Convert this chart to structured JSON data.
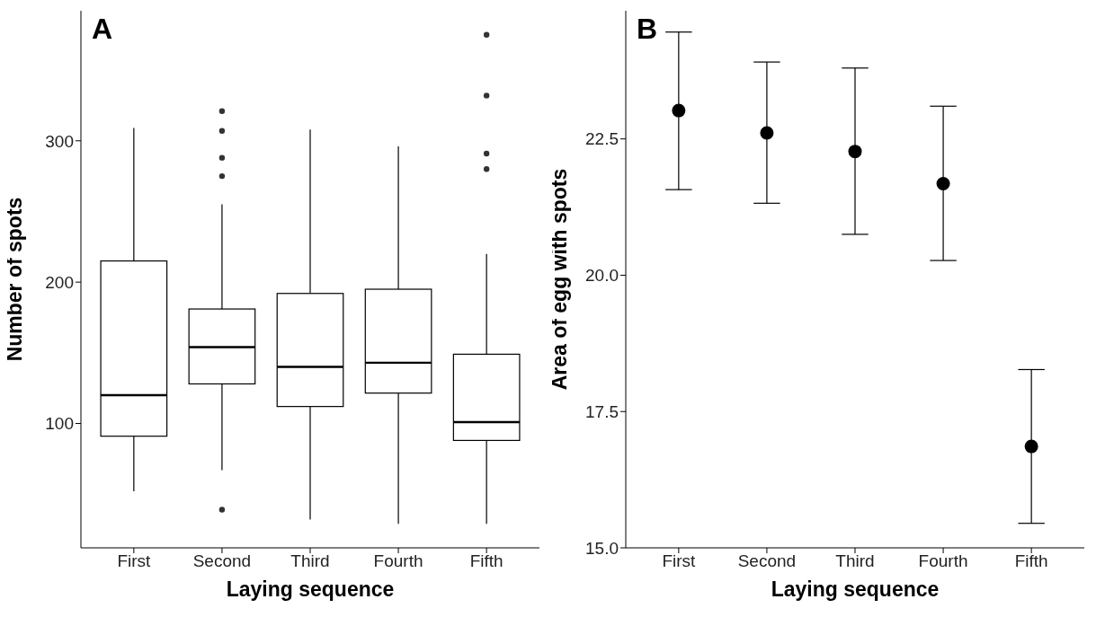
{
  "chart_data": [
    {
      "type": "box",
      "title": "A",
      "xlabel": "Laying sequence",
      "ylabel": "Number of spots",
      "categories": [
        "First",
        "Second",
        "Third",
        "Fourth",
        "Fifth"
      ],
      "color": "#000000",
      "ylim": [
        12,
        392
      ],
      "yticks": [
        100,
        200,
        300
      ],
      "grid": false,
      "boxes": [
        {
          "low": 52,
          "q1": 91,
          "median": 120,
          "q3": 215,
          "high": 309
        },
        {
          "low": 67,
          "q1": 128,
          "median": 154,
          "q3": 181,
          "high": 255,
          "outliers": [
            39,
            275,
            288,
            307,
            321
          ]
        },
        {
          "low": 32,
          "q1": 112,
          "median": 140,
          "q3": 192,
          "high": 308
        },
        {
          "low": 29,
          "q1": 121.5,
          "median": 143,
          "q3": 195,
          "high": 296
        },
        {
          "low": 29,
          "q1": 88,
          "median": 101,
          "q3": 149,
          "high": 220,
          "outliers": [
            280,
            291,
            332,
            375
          ]
        }
      ]
    },
    {
      "type": "scatter",
      "title": "B",
      "xlabel": "Laying sequence",
      "ylabel": "Area of egg with spots",
      "categories": [
        "First",
        "Second",
        "Third",
        "Fourth",
        "Fifth"
      ],
      "color": "#000000",
      "marker": "circle",
      "grid": false,
      "values": [
        23.02,
        22.61,
        22.27,
        21.68,
        16.86
      ],
      "errors": [
        [
          21.57,
          24.46
        ],
        [
          21.32,
          23.91
        ],
        [
          20.75,
          23.8
        ],
        [
          20.27,
          23.1
        ],
        [
          15.45,
          18.27
        ]
      ],
      "ylim": [
        15,
        24.85
      ],
      "yticks": [
        {
          "value": 15,
          "label": "15.0"
        },
        {
          "value": 17.5,
          "label": "17.5"
        },
        {
          "value": 20,
          "label": "20.0"
        },
        {
          "value": 22.5,
          "label": "22.5"
        }
      ]
    }
  ]
}
